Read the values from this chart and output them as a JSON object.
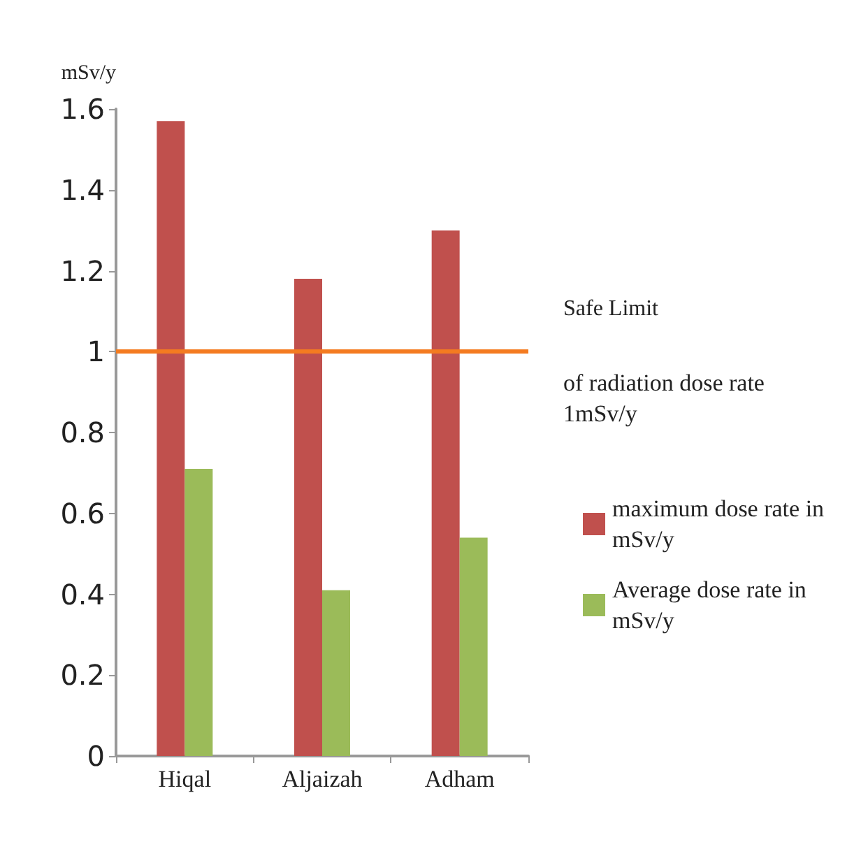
{
  "chart_data": {
    "type": "bar",
    "ylabel": "mSv/y",
    "categories": [
      "Hiqal",
      "Aljaizah",
      "Adham"
    ],
    "series": [
      {
        "name": "maximum dose rate in mSv/y",
        "color": "#c0504d",
        "values": [
          1.57,
          1.18,
          1.3
        ]
      },
      {
        "name": "Average dose rate in mSv/y",
        "color": "#9bbb59",
        "values": [
          0.71,
          0.41,
          0.54
        ]
      }
    ],
    "ylim": [
      0,
      1.6
    ],
    "yticks": [
      0,
      0.2,
      0.4,
      0.6,
      0.8,
      1,
      1.2,
      1.4,
      1.6
    ],
    "grid": false,
    "legend": "right",
    "ref_lines": [
      {
        "axis": "y",
        "value": 1,
        "label": "Safe Limit",
        "color": "#f47b20"
      }
    ],
    "annotations": [
      "of radiation dose rate  1mSv/y"
    ]
  }
}
